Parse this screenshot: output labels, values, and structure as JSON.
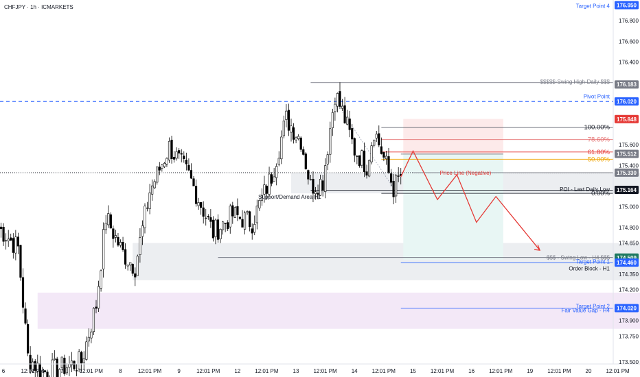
{
  "symbol_title": "CHFJPY · 1h · ICMARKETS",
  "colors": {
    "up": "#ffffff",
    "down": "#000000",
    "wick": "#000000",
    "blue": "#2962ff",
    "red": "#e53935",
    "orange": "#f0a400",
    "grey": "#787b86",
    "green": "#1e7a61",
    "zone_grey": "#eceef1",
    "zone_purple": "#f3e8f7",
    "zone_red": "#fdeaea",
    "zone_teal": "#e8f6f4"
  },
  "chart_data": {
    "type": "candlestick",
    "y_axis": {
      "ylim": [
        173.48,
        177.0
      ],
      "tick_labels": [
        "176.800",
        "176.600",
        "176.400",
        "176.183",
        "176.020",
        "175.848",
        "175.600",
        "175.512",
        "175.400",
        "175.330",
        "175.164",
        "175.000",
        "174.800",
        "174.650",
        "174.509",
        "174.460",
        "174.350",
        "174.200",
        "174.020",
        "173.900",
        "173.750",
        "173.500"
      ],
      "tick_values": [
        176.8,
        176.6,
        176.4,
        176.183,
        176.02,
        175.848,
        175.6,
        175.512,
        175.4,
        175.33,
        175.164,
        175.0,
        174.8,
        174.65,
        174.509,
        174.46,
        174.35,
        174.2,
        174.02,
        173.9,
        173.75,
        173.5
      ]
    },
    "x_axis": {
      "tick_labels": [
        "6",
        "12:01 PM",
        "7",
        "12:01 PM",
        "8",
        "12:01 PM",
        "9",
        "12:01 PM",
        "12",
        "12:01 PM",
        "13",
        "12:01 PM",
        "14",
        "12:01 PM",
        "15",
        "12:01 PM",
        "16",
        "12:01 PM",
        "19",
        "12:01 PM",
        "20",
        "12:01 PM",
        "21"
      ],
      "tick_bars": [
        0,
        12,
        24,
        36,
        48,
        60,
        72,
        84,
        96,
        108,
        120,
        132,
        144,
        156,
        168,
        180,
        192,
        204,
        216,
        228,
        240,
        252,
        264
      ]
    },
    "price_tags": [
      {
        "label": "176.950",
        "value": 176.95,
        "color": "#2962ff",
        "partial": true
      },
      {
        "label": "176.183",
        "value": 176.183,
        "color": "#787b86"
      },
      {
        "label": "176.020",
        "value": 176.02,
        "color": "#2962ff"
      },
      {
        "label": "175.848",
        "value": 175.848,
        "color": "#e53935"
      },
      {
        "label": "175.512",
        "value": 175.512,
        "color": "#787b86"
      },
      {
        "label": "175.330",
        "value": 175.33,
        "color": "#787b86"
      },
      {
        "label": "175.164",
        "value": 175.164,
        "color": "#131722"
      },
      {
        "label": "174.509",
        "value": 174.509,
        "color": "#1e7a61"
      },
      {
        "label": "174.460",
        "value": 174.46,
        "color": "#2962ff"
      },
      {
        "label": "174.020",
        "value": 174.02,
        "color": "#2962ff"
      }
    ],
    "fibonacci": [
      {
        "label": "100.00%",
        "value": 175.77,
        "color": "#131722"
      },
      {
        "label": "78.60%",
        "value": 175.65,
        "color": "#e57373"
      },
      {
        "label": "61.80%",
        "value": 175.53,
        "color": "#e53935"
      },
      {
        "label": "50.00%",
        "value": 175.46,
        "color": "#f0a400"
      },
      {
        "label": "0.00%",
        "value": 175.13,
        "color": "#131722"
      }
    ],
    "annotations": [
      {
        "label": "$$$$$-Swing High-Daily $$$",
        "value": 176.21,
        "color": "#787b86"
      },
      {
        "label": "Pivot Point",
        "value": 176.07,
        "color": "#2962ff"
      },
      {
        "label": "Price Line (Negative)",
        "value": 175.33,
        "color": "#e53935"
      },
      {
        "label": "Support/Demand Area H1",
        "value": 175.13,
        "color": "#131722"
      },
      {
        "label": "POI - Last Daily Low",
        "value": 175.17,
        "color": "#131722"
      },
      {
        "label": "$$$ - Swing Low - H4 $$$",
        "value": 174.51,
        "color": "#787b86"
      },
      {
        "label": "Target Point 1",
        "value": 174.47,
        "color": "#2962ff"
      },
      {
        "label": "Order Block - H1",
        "value": 174.43,
        "color": "#131722"
      },
      {
        "label": "Target Point 2",
        "value": 174.04,
        "color": "#2962ff"
      },
      {
        "label": "Fair Value Gap - H4",
        "value": 174.02,
        "color": "#2962ff"
      },
      {
        "label": "Target Point 4",
        "value": 176.95,
        "color": "#2962ff"
      }
    ],
    "horizontal_lines": [
      {
        "name": "swing-high-line",
        "y": 176.2,
        "x0": 128,
        "x1": 255,
        "color": "#787b86",
        "dash": ""
      },
      {
        "name": "pivot-line",
        "y": 176.02,
        "x0": -4,
        "x1": 285,
        "color": "#2962ff",
        "dash": "5,4"
      },
      {
        "name": "price-dotted-line",
        "y": 175.33,
        "x0": -4,
        "x1": 285,
        "color": "#131722",
        "dash": "1,2"
      },
      {
        "name": "support-top-line",
        "y": 175.33,
        "x0": 170,
        "x1": 285,
        "color": "#787b86",
        "dash": ""
      },
      {
        "name": "poi-line",
        "y": 175.16,
        "x0": 128,
        "x1": 285,
        "color": "#131722",
        "dash": ""
      },
      {
        "name": "swing-low-h4-line",
        "y": 174.51,
        "x0": 90,
        "x1": 285,
        "color": "#787b86",
        "dash": ""
      },
      {
        "name": "target1-line",
        "y": 174.46,
        "x0": 165,
        "x1": 285,
        "color": "#2962ff",
        "dash": ""
      },
      {
        "name": "target2-line",
        "y": 174.02,
        "x0": 165,
        "x1": 285,
        "color": "#2962ff",
        "dash": ""
      },
      {
        "name": "fib-line-100",
        "y": 175.77,
        "x0": 157,
        "x1": 270,
        "color": "#555a66",
        "dash": ""
      },
      {
        "name": "fib-line-786",
        "y": 175.65,
        "x0": 157,
        "x1": 270,
        "color": "#e57373",
        "dash": ""
      },
      {
        "name": "fib-line-618",
        "y": 175.53,
        "x0": 157,
        "x1": 270,
        "color": "#e53935",
        "dash": ""
      },
      {
        "name": "fib-line-50",
        "y": 175.46,
        "x0": 157,
        "x1": 270,
        "color": "#f0a400",
        "dash": ""
      },
      {
        "name": "fib-line-0",
        "y": 175.13,
        "x0": 157,
        "x1": 270,
        "color": "#131722",
        "dash": ""
      },
      {
        "name": "entry-line",
        "y": 175.51,
        "x0": 165,
        "x1": 207,
        "color": "#555a66",
        "dash": ""
      }
    ],
    "zones": [
      {
        "name": "support-demand-zone",
        "y_top": 175.33,
        "y_bottom": 175.13,
        "x0": 120,
        "x1": 285,
        "color": "#eceef1"
      },
      {
        "name": "order-block-zone",
        "y_top": 174.65,
        "y_bottom": 174.29,
        "x0": 55,
        "x1": 285,
        "color": "#eceef1"
      },
      {
        "name": "fvg-zone",
        "y_top": 174.17,
        "y_bottom": 173.82,
        "x0": 16,
        "x1": 285,
        "color": "#f3e8f7"
      },
      {
        "name": "stop-zone",
        "y_top": 175.85,
        "y_bottom": 175.51,
        "x0": 166,
        "x1": 207,
        "color": "#fdeaea"
      },
      {
        "name": "target-zone",
        "y_top": 175.51,
        "y_bottom": 174.49,
        "x0": 166,
        "x1": 207,
        "color": "#e8f6f4"
      }
    ],
    "projection_path": [
      [
        165,
        175.29
      ],
      [
        170,
        175.54
      ],
      [
        180,
        175.07
      ],
      [
        188,
        175.31
      ],
      [
        196,
        174.85
      ],
      [
        204,
        175.1
      ],
      [
        222,
        174.58
      ]
    ],
    "key_points": [
      {
        "bar": 0,
        "close": 174.8
      },
      {
        "bar": 8,
        "close": 174.6
      },
      {
        "bar": 12,
        "close": 173.55
      },
      {
        "bar": 18,
        "close": 173.4
      },
      {
        "bar": 25,
        "close": 173.44
      },
      {
        "bar": 34,
        "close": 173.5
      },
      {
        "bar": 40,
        "close": 174.05
      },
      {
        "bar": 44,
        "close": 174.9
      },
      {
        "bar": 51,
        "close": 174.55
      },
      {
        "bar": 56,
        "close": 174.42
      },
      {
        "bar": 62,
        "close": 175.15
      },
      {
        "bar": 70,
        "close": 175.58
      },
      {
        "bar": 78,
        "close": 175.3
      },
      {
        "bar": 88,
        "close": 174.75
      },
      {
        "bar": 96,
        "close": 174.92
      },
      {
        "bar": 104,
        "close": 174.85
      },
      {
        "bar": 112,
        "close": 175.3
      },
      {
        "bar": 118,
        "close": 175.85
      },
      {
        "bar": 124,
        "close": 175.65
      },
      {
        "bar": 128,
        "close": 175.2
      },
      {
        "bar": 133,
        "close": 175.25
      },
      {
        "bar": 138,
        "close": 176.1
      },
      {
        "bar": 141,
        "close": 175.92
      },
      {
        "bar": 146,
        "close": 175.55
      },
      {
        "bar": 151,
        "close": 175.4
      },
      {
        "bar": 154,
        "close": 175.75
      },
      {
        "bar": 159,
        "close": 175.4
      },
      {
        "bar": 162,
        "close": 175.18
      },
      {
        "bar": 165,
        "close": 175.3
      }
    ]
  }
}
